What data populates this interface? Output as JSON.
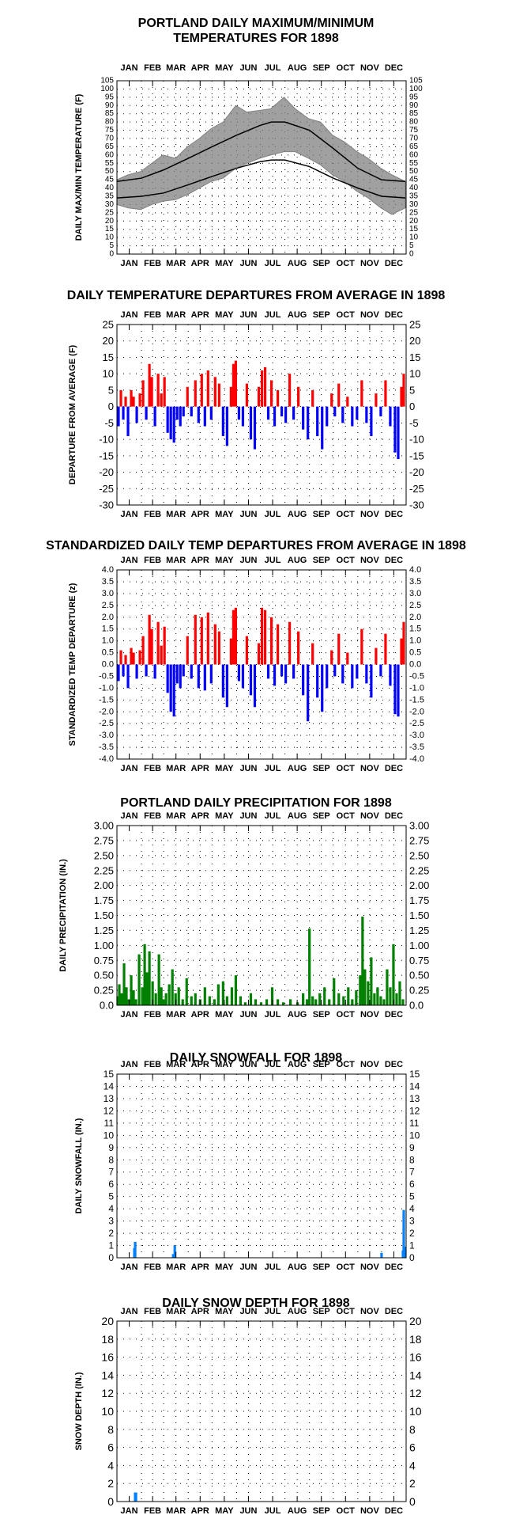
{
  "months": [
    "JAN",
    "FEB",
    "MAR",
    "APR",
    "MAY",
    "JUN",
    "JUL",
    "AUG",
    "SEP",
    "OCT",
    "NOV",
    "DEC"
  ],
  "chart_data": [
    {
      "id": "temp",
      "type": "line",
      "title": "PORTLAND DAILY MAXIMUM/MINIMUM\nTEMPERATURES FOR 1898",
      "ylabel": "DAILY MAX/MIN TEMPERATURE (F)",
      "xlabel": "",
      "ylim": [
        0,
        105
      ],
      "yticks": [
        "0",
        "5",
        "10",
        "15",
        "20",
        "25",
        "30",
        "35",
        "40",
        "45",
        "50",
        "55",
        "60",
        "65",
        "70",
        "75",
        "80",
        "85",
        "90",
        "95",
        "100",
        "105"
      ],
      "series": [
        {
          "role": "daily-range",
          "color": "#808080",
          "x": [
            1,
            15,
            31,
            45,
            59,
            75,
            90,
            105,
            120,
            135,
            151,
            165,
            181,
            195,
            212,
            226,
            243,
            258,
            273,
            288,
            304,
            318,
            334,
            348,
            365
          ],
          "high": [
            45,
            48,
            50,
            55,
            60,
            58,
            65,
            70,
            76,
            80,
            90,
            86,
            87,
            88,
            95,
            88,
            82,
            80,
            72,
            68,
            62,
            58,
            52,
            48,
            44
          ],
          "low": [
            30,
            28,
            27,
            30,
            32,
            33,
            36,
            40,
            44,
            46,
            52,
            55,
            58,
            60,
            62,
            62,
            58,
            54,
            48,
            44,
            38,
            34,
            28,
            24,
            28
          ]
        },
        {
          "role": "normal-high",
          "color": "#000000",
          "x": [
            1,
            32,
            60,
            91,
            121,
            152,
            182,
            196,
            213,
            244,
            274,
            305,
            335,
            365
          ],
          "values": [
            44,
            46,
            51,
            58,
            65,
            72,
            78,
            80,
            80,
            75,
            64,
            52,
            45,
            44
          ]
        },
        {
          "role": "normal-low",
          "color": "#000000",
          "x": [
            1,
            32,
            60,
            91,
            121,
            152,
            182,
            196,
            213,
            244,
            274,
            305,
            335,
            365
          ],
          "values": [
            34,
            35,
            37,
            42,
            47,
            52,
            56,
            57,
            57,
            53,
            46,
            40,
            35,
            34
          ]
        }
      ]
    },
    {
      "id": "dep",
      "type": "bar",
      "title": "DAILY TEMPERATURE DEPARTURES FROM AVERAGE IN 1898",
      "ylabel": "DEPARTURE FROM AVERAGE (F)",
      "xlabel": "",
      "ylim": [
        -30,
        25
      ],
      "yticks": [
        "-30",
        "-25",
        "-20",
        "-15",
        "-10",
        "-5",
        "0",
        "5",
        "10",
        "15",
        "20",
        "25"
      ],
      "colors": {
        "positive": "#ff0000",
        "negative": "#0000ff"
      },
      "x": [
        3,
        6,
        9,
        12,
        15,
        19,
        22,
        26,
        30,
        34,
        38,
        42,
        45,
        49,
        53,
        57,
        61,
        65,
        69,
        73,
        77,
        81,
        85,
        90,
        95,
        100,
        104,
        108,
        112,
        116,
        120,
        125,
        130,
        135,
        140,
        145,
        148,
        151,
        155,
        160,
        165,
        170,
        175,
        180,
        184,
        188,
        192,
        196,
        200,
        204,
        209,
        214,
        219,
        224,
        230,
        236,
        242,
        248,
        254,
        260,
        266,
        272,
        276,
        281,
        286,
        292,
        298,
        304,
        310,
        316,
        322,
        328,
        334,
        340,
        346,
        352,
        356,
        360,
        363
      ],
      "values": [
        -6,
        5,
        -4,
        3,
        -9,
        5,
        3,
        -5,
        4,
        8,
        -4,
        13,
        9,
        -6,
        10,
        4,
        9,
        -8,
        -10,
        -11,
        -4,
        -6,
        -3,
        6,
        -3,
        8,
        -5,
        10,
        -6,
        11,
        -4,
        9,
        7,
        -9,
        -12,
        6,
        13,
        14,
        -4,
        -6,
        7,
        -10,
        -13,
        6,
        11,
        12,
        -4,
        8,
        -6,
        5,
        -3,
        -5,
        10,
        -4,
        6,
        -7,
        -10,
        5,
        -9,
        -13,
        -6,
        4,
        -3,
        7,
        -5,
        3,
        -6,
        -4,
        8,
        -5,
        -9,
        4,
        -3,
        8,
        -6,
        -14,
        -16,
        6,
        10
      ]
    },
    {
      "id": "std",
      "type": "bar",
      "title": "STANDARDIZED DAILY TEMP DEPARTURES FROM AVERAGE IN 1898",
      "ylabel": "STANDARDIZED TEMP DEPARTURE (z)",
      "xlabel": "",
      "ylim": [
        -4,
        4
      ],
      "yticks": [
        "-4.0",
        "-3.5",
        "-3.0",
        "-2.5",
        "-2.0",
        "-1.5",
        "-1.0",
        "-0.5",
        "0.0",
        "0.5",
        "1.0",
        "1.5",
        "2.0",
        "2.5",
        "3.0",
        "3.5",
        "4.0"
      ],
      "colors": {
        "positive": "#ff0000",
        "negative": "#0000ff"
      },
      "x": [
        3,
        6,
        9,
        12,
        15,
        19,
        22,
        26,
        30,
        34,
        38,
        42,
        45,
        49,
        53,
        57,
        61,
        65,
        69,
        73,
        77,
        81,
        85,
        90,
        95,
        100,
        104,
        108,
        112,
        116,
        120,
        125,
        130,
        135,
        140,
        145,
        148,
        151,
        155,
        160,
        165,
        170,
        175,
        180,
        184,
        188,
        192,
        196,
        200,
        204,
        209,
        214,
        219,
        224,
        230,
        236,
        242,
        248,
        254,
        260,
        266,
        272,
        276,
        281,
        286,
        292,
        298,
        304,
        310,
        316,
        322,
        328,
        334,
        340,
        346,
        352,
        356,
        360,
        363
      ],
      "values": [
        -0.7,
        0.6,
        -0.5,
        0.4,
        -1.0,
        0.7,
        0.5,
        -0.6,
        0.6,
        1.2,
        -0.5,
        2.1,
        1.5,
        -0.6,
        1.8,
        0.8,
        1.6,
        -1.2,
        -2.0,
        -2.2,
        -0.8,
        -1.0,
        -0.5,
        1.2,
        -0.6,
        2.1,
        -1.0,
        2.0,
        -1.1,
        2.2,
        -0.8,
        1.7,
        1.4,
        -1.4,
        -1.8,
        1.1,
        2.3,
        2.4,
        -0.7,
        -1.0,
        1.2,
        -1.3,
        -1.8,
        0.9,
        2.4,
        2.3,
        -0.6,
        2.0,
        -0.9,
        1.7,
        -0.5,
        -0.8,
        1.8,
        -0.6,
        1.4,
        -1.3,
        -2.4,
        0.9,
        -1.4,
        -2.0,
        -1.0,
        0.6,
        -0.5,
        1.3,
        -0.8,
        0.5,
        -1.0,
        -0.6,
        1.5,
        -0.8,
        -1.4,
        0.7,
        -0.5,
        1.3,
        -0.9,
        -2.1,
        -2.2,
        1.1,
        1.8
      ]
    },
    {
      "id": "precip",
      "type": "bar",
      "title": "PORTLAND DAILY PRECIPITATION FOR 1898",
      "ylabel": "DAILY PRECIPITATION (IN.)",
      "xlabel": "",
      "ylim": [
        0,
        3
      ],
      "yticks": [
        "0.0",
        "0.25",
        "0.50",
        "0.75",
        "1.00",
        "1.25",
        "1.50",
        "1.75",
        "2.00",
        "2.25",
        "2.50",
        "2.75",
        "3.00"
      ],
      "color": "#008000",
      "x": [
        2,
        4,
        7,
        10,
        13,
        16,
        19,
        22,
        25,
        29,
        33,
        36,
        39,
        42,
        46,
        50,
        54,
        57,
        60,
        63,
        67,
        71,
        75,
        79,
        84,
        89,
        95,
        100,
        106,
        112,
        118,
        124,
        129,
        135,
        140,
        146,
        151,
        157,
        163,
        170,
        176,
        183,
        190,
        197,
        204,
        211,
        220,
        229,
        236,
        241,
        244,
        248,
        252,
        257,
        263,
        269,
        275,
        281,
        287,
        293,
        298,
        303,
        308,
        311,
        314,
        318,
        322,
        326,
        330,
        334,
        338,
        342,
        346,
        350,
        354,
        358,
        362
      ],
      "values": [
        0.15,
        0.35,
        0.2,
        0.7,
        0.3,
        0.1,
        0.5,
        0.25,
        0.1,
        0.85,
        0.3,
        1.02,
        0.55,
        0.9,
        0.4,
        0.2,
        0.85,
        0.3,
        0.1,
        0.2,
        0.35,
        0.6,
        0.2,
        0.3,
        0.1,
        0.45,
        0.15,
        0.2,
        0.1,
        0.3,
        0.15,
        0.1,
        0.35,
        0.4,
        0.15,
        0.3,
        0.5,
        0.15,
        0.05,
        0.2,
        0.1,
        0.05,
        0.1,
        0.3,
        0.1,
        0.05,
        0.1,
        0.05,
        0.2,
        0.1,
        1.28,
        0.15,
        0.1,
        0.2,
        0.3,
        0.1,
        0.45,
        0.2,
        0.15,
        0.3,
        0.1,
        0.25,
        0.5,
        1.48,
        0.6,
        0.4,
        0.8,
        0.2,
        0.3,
        0.15,
        0.1,
        0.6,
        0.3,
        1.02,
        0.2,
        0.4,
        0.1
      ]
    },
    {
      "id": "snow",
      "type": "bar",
      "title": "DAILY SNOWFALL FOR 1898",
      "ylabel": "DAILY SNOWFALL (IN.)",
      "xlabel": "",
      "ylim": [
        0,
        15
      ],
      "yticks": [
        "0",
        "1",
        "2",
        "3",
        "4",
        "5",
        "6",
        "7",
        "8",
        "9",
        "10",
        "11",
        "12",
        "13",
        "14",
        "15"
      ],
      "color": "#0080ff",
      "x": [
        23,
        24,
        72,
        74,
        335,
        362,
        363,
        364
      ],
      "values": [
        0.8,
        1.3,
        0.3,
        1.0,
        0.4,
        0.6,
        3.9,
        0.9
      ]
    },
    {
      "id": "depth",
      "type": "bar",
      "title": "DAILY SNOW DEPTH FOR 1898",
      "ylabel": "SNOW DEPTH (IN.)",
      "xlabel": "",
      "ylim": [
        0,
        20
      ],
      "yticks": [
        "0",
        "2",
        "4",
        "6",
        "8",
        "10",
        "12",
        "14",
        "16",
        "18",
        "20"
      ],
      "color": "#0080ff",
      "x": [
        24,
        25
      ],
      "values": [
        1.0,
        1.0
      ]
    }
  ]
}
